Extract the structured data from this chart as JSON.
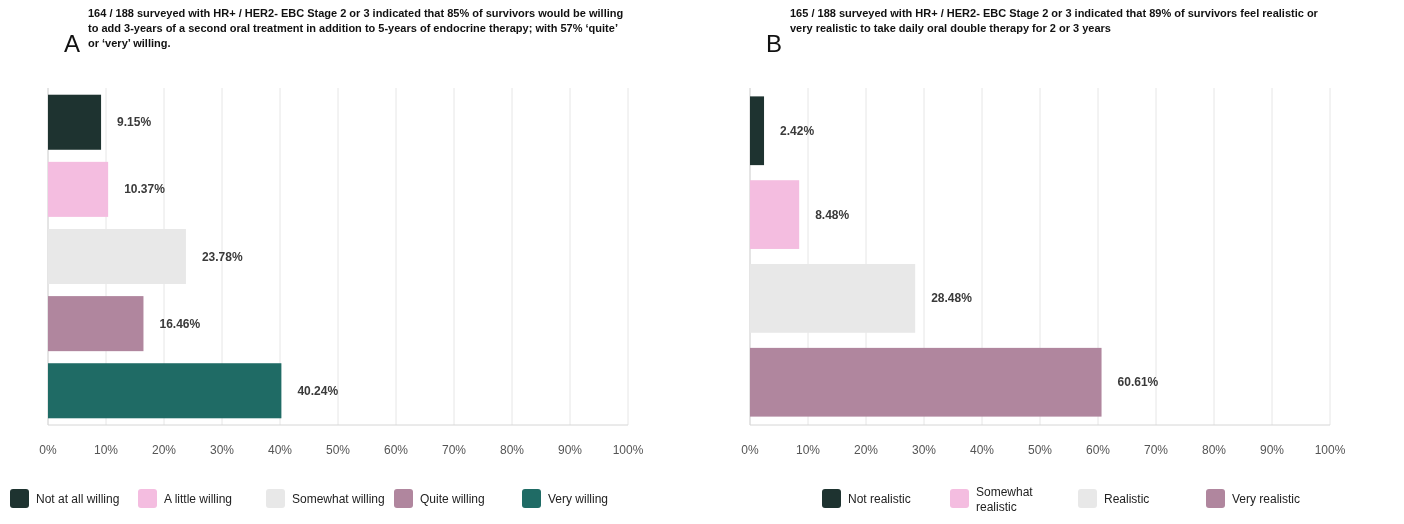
{
  "chart_data": [
    {
      "type": "bar",
      "orientation": "horizontal",
      "title": "A",
      "subtitle": "164 / 188 surveyed with HR+ / HER2- EBC Stage 2 or 3 indicated that 85% of survivors would be willing to add 3-years of a second oral treatment in addition to 5-years of endocrine therapy; with 57% ‘quite’ or ‘very’ willing.",
      "categories": [
        null,
        null,
        null,
        null,
        null
      ],
      "series": [
        {
          "name": "Not at all willing",
          "color": "#1e3330",
          "values": [
            9.15,
            null,
            null,
            null,
            null
          ],
          "value_labels": [
            "9.15%",
            null,
            null,
            null,
            null
          ]
        },
        {
          "name": "A little willing",
          "color": "#f4bde0",
          "values": [
            null,
            10.37,
            null,
            null,
            null
          ],
          "value_labels": [
            null,
            "10.37%",
            null,
            null,
            null
          ]
        },
        {
          "name": "Somewhat willing",
          "color": "#e8e8e8",
          "values": [
            null,
            null,
            23.78,
            null,
            null
          ],
          "value_labels": [
            null,
            null,
            "23.78%",
            null,
            null
          ]
        },
        {
          "name": "Quite willing",
          "color": "#b0869e",
          "values": [
            null,
            null,
            null,
            16.46,
            null
          ],
          "value_labels": [
            null,
            null,
            null,
            "16.46%",
            null
          ]
        },
        {
          "name": "Very willing",
          "color": "#1f6b65",
          "values": [
            null,
            null,
            null,
            null,
            40.24
          ],
          "value_labels": [
            null,
            null,
            null,
            null,
            "40.24%"
          ]
        }
      ],
      "xlim": [
        0,
        100
      ],
      "xticks": [
        {
          "value": 0,
          "label": "0%"
        },
        {
          "value": 10,
          "label": "10%"
        },
        {
          "value": 20,
          "label": "20%"
        },
        {
          "value": 30,
          "label": "30%"
        },
        {
          "value": 40,
          "label": "40%"
        },
        {
          "value": 50,
          "label": "50%"
        },
        {
          "value": 60,
          "label": "60%"
        },
        {
          "value": 70,
          "label": "70%"
        },
        {
          "value": 80,
          "label": "80%"
        },
        {
          "value": 90,
          "label": "90%"
        },
        {
          "value": 100,
          "label": "100%"
        }
      ],
      "grid": "x",
      "legend": "bottom"
    },
    {
      "type": "bar",
      "orientation": "horizontal",
      "title": "B",
      "subtitle": "165 / 188 surveyed with HR+ / HER2- EBC Stage 2 or 3 indicated that 89% of survivors feel realistic or very realistic to take daily oral double therapy for 2 or 3 years",
      "categories": [
        null,
        null,
        null,
        null
      ],
      "series": [
        {
          "name": "Not realistic",
          "color": "#1e3330",
          "values": [
            2.42,
            null,
            null,
            null
          ],
          "value_labels": [
            "2.42%",
            null,
            null,
            null
          ]
        },
        {
          "name": "Somewhat realistic",
          "color": "#f4bde0",
          "values": [
            null,
            8.48,
            null,
            null
          ],
          "value_labels": [
            null,
            "8.48%",
            null,
            null
          ]
        },
        {
          "name": "Realistic",
          "color": "#e8e8e8",
          "values": [
            null,
            null,
            28.48,
            null
          ],
          "value_labels": [
            null,
            null,
            "28.48%",
            null
          ]
        },
        {
          "name": "Very realistic",
          "color": "#b0869e",
          "values": [
            null,
            null,
            null,
            60.61
          ],
          "value_labels": [
            null,
            null,
            null,
            "60.61%"
          ]
        }
      ],
      "xlim": [
        0,
        100
      ],
      "xticks": [
        {
          "value": 0,
          "label": "0%"
        },
        {
          "value": 10,
          "label": "10%"
        },
        {
          "value": 20,
          "label": "20%"
        },
        {
          "value": 30,
          "label": "30%"
        },
        {
          "value": 40,
          "label": "40%"
        },
        {
          "value": 50,
          "label": "50%"
        },
        {
          "value": 60,
          "label": "60%"
        },
        {
          "value": 70,
          "label": "70%"
        },
        {
          "value": 80,
          "label": "80%"
        },
        {
          "value": 90,
          "label": "90%"
        },
        {
          "value": 100,
          "label": "100%"
        }
      ],
      "grid": "x",
      "legend": "bottom"
    }
  ]
}
